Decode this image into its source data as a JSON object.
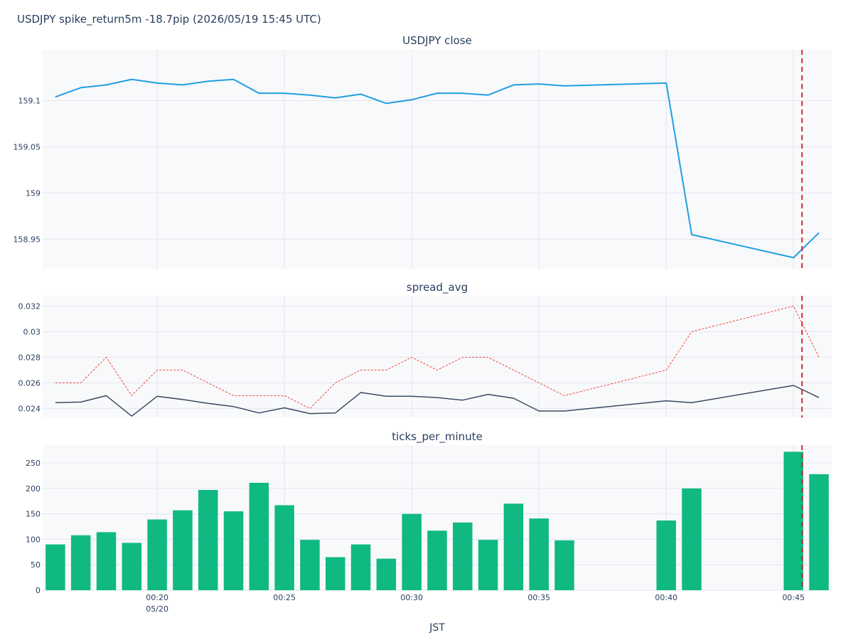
{
  "title": "USDJPY spike_return5m -18.7pip (2026/05/19 15:45 UTC)",
  "colors": {
    "close_line": "#1f9fe0",
    "spread_avg_line": "#3b4a63",
    "spread_dashed_line": "#ef4b3c",
    "bar_fill": "#10b981",
    "event_line": "#d62728"
  },
  "chart_data": [
    {
      "type": "line",
      "title": "USDJPY close",
      "x_unit": "minutes (JST)",
      "x": [
        "00:16",
        "00:17",
        "00:18",
        "00:19",
        "00:20",
        "00:21",
        "00:22",
        "00:23",
        "00:24",
        "00:25",
        "00:26",
        "00:27",
        "00:28",
        "00:29",
        "00:30",
        "00:31",
        "00:32",
        "00:33",
        "00:34",
        "00:35",
        "00:36",
        "00:40",
        "00:41",
        "00:45",
        "00:46"
      ],
      "series": [
        {
          "values": [
            159.104,
            159.114,
            159.117,
            159.123,
            159.119,
            159.117,
            159.121,
            159.123,
            159.108,
            159.108,
            159.106,
            159.103,
            159.107,
            159.097,
            159.101,
            159.108,
            159.108,
            159.106,
            159.117,
            159.118,
            159.116,
            159.119,
            158.955,
            158.93,
            158.957
          ]
        }
      ],
      "yticks": [
        "159.1",
        "159.05",
        "159",
        "158.95"
      ],
      "ylim": [
        158.918,
        159.155
      ],
      "grid": true
    },
    {
      "type": "line",
      "title": "spread_avg",
      "x": [
        "00:16",
        "00:17",
        "00:18",
        "00:19",
        "00:20",
        "00:21",
        "00:22",
        "00:23",
        "00:24",
        "00:25",
        "00:26",
        "00:27",
        "00:28",
        "00:29",
        "00:30",
        "00:31",
        "00:32",
        "00:33",
        "00:34",
        "00:35",
        "00:36",
        "00:40",
        "00:41",
        "00:45",
        "00:46"
      ],
      "series": [
        {
          "style": "solid",
          "values": [
            0.02445,
            0.0245,
            0.025,
            0.0234,
            0.02495,
            0.0247,
            0.0244,
            0.02415,
            0.02365,
            0.02405,
            0.0236,
            0.02365,
            0.02525,
            0.02495,
            0.02495,
            0.02485,
            0.02465,
            0.0251,
            0.0248,
            0.0238,
            0.0238,
            0.0246,
            0.02445,
            0.0258,
            0.02485
          ]
        },
        {
          "style": "dashed",
          "values": [
            0.026,
            0.026,
            0.028,
            0.025,
            0.027,
            0.027,
            0.026,
            0.025,
            0.025,
            0.025,
            0.024,
            0.026,
            0.027,
            0.027,
            0.028,
            0.027,
            0.028,
            0.028,
            0.027,
            0.026,
            0.025,
            0.027,
            0.03,
            0.032,
            0.028
          ]
        }
      ],
      "yticks": [
        "0.032",
        "0.03",
        "0.028",
        "0.026",
        "0.024"
      ],
      "ylim": [
        0.0233,
        0.0328
      ],
      "grid": true
    },
    {
      "type": "bar",
      "title": "ticks_per_minute",
      "xlabel": "JST",
      "categories": [
        "00:16",
        "00:17",
        "00:18",
        "00:19",
        "00:20",
        "00:21",
        "00:22",
        "00:23",
        "00:24",
        "00:25",
        "00:26",
        "00:27",
        "00:28",
        "00:29",
        "00:30",
        "00:31",
        "00:32",
        "00:33",
        "00:34",
        "00:35",
        "00:36",
        "00:40",
        "00:41",
        "00:45",
        "00:46"
      ],
      "values": [
        90,
        108,
        114,
        93,
        139,
        157,
        197,
        155,
        211,
        167,
        99,
        65,
        90,
        62,
        150,
        117,
        133,
        99,
        170,
        141,
        98,
        137,
        200,
        272,
        228
      ],
      "yticks": [
        "250",
        "200",
        "150",
        "100",
        "50",
        "0"
      ],
      "ylim": [
        0,
        285
      ],
      "grid": true
    }
  ],
  "x_axis": {
    "ticks": [
      "00:20",
      "00:25",
      "00:30",
      "00:35",
      "00:40",
      "00:45"
    ],
    "date_label": "05/20",
    "title": "JST"
  },
  "event_marker": {
    "time": "00:45",
    "style": "dashed"
  }
}
